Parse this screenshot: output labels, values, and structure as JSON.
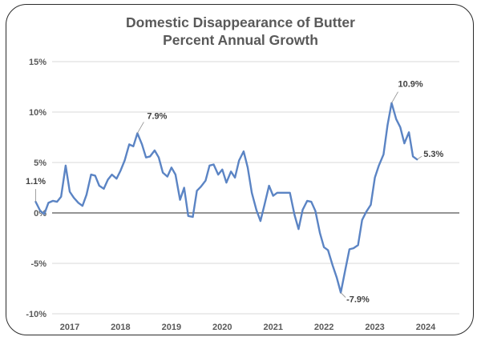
{
  "chart_data": {
    "type": "line",
    "title_line1": "Domestic Disappearance of Butter",
    "title_line2": "Percent Annual Growth",
    "xlabel": "",
    "ylabel": "",
    "ylim": [
      -10,
      15
    ],
    "yticks": [
      {
        "value": 15,
        "label": "15%"
      },
      {
        "value": 10,
        "label": "10%"
      },
      {
        "value": 5,
        "label": "5%"
      },
      {
        "value": 0,
        "label": "0%"
      },
      {
        "value": -5,
        "label": "-5%"
      },
      {
        "value": -10,
        "label": "-10%"
      }
    ],
    "xlim": [
      2016.33,
      2025.0
    ],
    "xticks": [
      {
        "value": 2017.0,
        "label": "2017"
      },
      {
        "value": 2018.0,
        "label": "2018"
      },
      {
        "value": 2019.0,
        "label": "2019"
      },
      {
        "value": 2020.0,
        "label": "2020"
      },
      {
        "value": 2021.0,
        "label": "2021"
      },
      {
        "value": 2022.0,
        "label": "2022"
      },
      {
        "value": 2023.0,
        "label": "2023"
      },
      {
        "value": 2024.0,
        "label": "2024"
      }
    ],
    "grid": true,
    "line_color": "#5b84c4",
    "series": [
      {
        "name": "",
        "points": [
          [
            2016.33,
            1.1
          ],
          [
            2016.42,
            0.2
          ],
          [
            2016.5,
            -0.1
          ],
          [
            2016.58,
            1.0
          ],
          [
            2016.67,
            1.2
          ],
          [
            2016.75,
            1.1
          ],
          [
            2016.83,
            1.6
          ],
          [
            2016.92,
            4.7
          ],
          [
            2017.0,
            2.1
          ],
          [
            2017.08,
            1.5
          ],
          [
            2017.17,
            1.0
          ],
          [
            2017.25,
            0.7
          ],
          [
            2017.33,
            1.8
          ],
          [
            2017.42,
            3.8
          ],
          [
            2017.5,
            3.7
          ],
          [
            2017.58,
            2.7
          ],
          [
            2017.67,
            2.4
          ],
          [
            2017.75,
            3.3
          ],
          [
            2017.83,
            3.8
          ],
          [
            2017.92,
            3.4
          ],
          [
            2018.0,
            4.2
          ],
          [
            2018.08,
            5.2
          ],
          [
            2018.17,
            6.8
          ],
          [
            2018.25,
            6.6
          ],
          [
            2018.33,
            7.9
          ],
          [
            2018.42,
            6.8
          ],
          [
            2018.5,
            5.5
          ],
          [
            2018.58,
            5.6
          ],
          [
            2018.67,
            6.2
          ],
          [
            2018.75,
            5.5
          ],
          [
            2018.83,
            4.0
          ],
          [
            2018.92,
            3.6
          ],
          [
            2019.0,
            4.5
          ],
          [
            2019.08,
            3.8
          ],
          [
            2019.17,
            1.3
          ],
          [
            2019.25,
            2.5
          ],
          [
            2019.33,
            -0.3
          ],
          [
            2019.42,
            -0.4
          ],
          [
            2019.5,
            2.2
          ],
          [
            2019.58,
            2.6
          ],
          [
            2019.67,
            3.2
          ],
          [
            2019.75,
            4.7
          ],
          [
            2019.83,
            4.8
          ],
          [
            2019.92,
            3.8
          ],
          [
            2020.0,
            4.3
          ],
          [
            2020.08,
            3.0
          ],
          [
            2020.17,
            4.1
          ],
          [
            2020.25,
            3.5
          ],
          [
            2020.33,
            5.2
          ],
          [
            2020.42,
            6.1
          ],
          [
            2020.5,
            4.5
          ],
          [
            2020.58,
            2.0
          ],
          [
            2020.67,
            0.3
          ],
          [
            2020.75,
            -0.8
          ],
          [
            2020.83,
            0.8
          ],
          [
            2020.92,
            2.7
          ],
          [
            2021.0,
            1.7
          ],
          [
            2021.08,
            2.0
          ],
          [
            2021.17,
            2.0
          ],
          [
            2021.25,
            2.0
          ],
          [
            2021.33,
            2.0
          ],
          [
            2021.42,
            -0.2
          ],
          [
            2021.5,
            -1.6
          ],
          [
            2021.58,
            0.3
          ],
          [
            2021.67,
            1.2
          ],
          [
            2021.75,
            1.1
          ],
          [
            2021.83,
            0.2
          ],
          [
            2021.92,
            -2.0
          ],
          [
            2022.0,
            -3.4
          ],
          [
            2022.08,
            -3.7
          ],
          [
            2022.17,
            -5.2
          ],
          [
            2022.25,
            -6.4
          ],
          [
            2022.33,
            -7.9
          ],
          [
            2022.42,
            -5.6
          ],
          [
            2022.5,
            -3.6
          ],
          [
            2022.58,
            -3.5
          ],
          [
            2022.67,
            -3.2
          ],
          [
            2022.75,
            -0.7
          ],
          [
            2022.83,
            0.1
          ],
          [
            2022.92,
            0.8
          ],
          [
            2023.0,
            3.5
          ],
          [
            2023.08,
            4.7
          ],
          [
            2023.17,
            5.8
          ],
          [
            2023.25,
            8.7
          ],
          [
            2023.33,
            10.9
          ],
          [
            2023.42,
            9.3
          ],
          [
            2023.5,
            8.5
          ],
          [
            2023.58,
            6.9
          ],
          [
            2023.67,
            8.0
          ],
          [
            2023.75,
            5.6
          ],
          [
            2023.83,
            5.3
          ]
        ]
      }
    ],
    "annotations": [
      {
        "label": "1.1%",
        "x": 2016.33,
        "y": 1.1,
        "color": "#404040"
      },
      {
        "label": "7.9%",
        "x": 2018.33,
        "y": 7.9,
        "color": "#404040"
      },
      {
        "label": "10.9%",
        "x": 2023.33,
        "y": 10.9,
        "color": "#404040"
      },
      {
        "label": "5.3%",
        "x": 2023.83,
        "y": 5.3,
        "color": "#404040"
      },
      {
        "label": "-7.9%",
        "x": 2022.33,
        "y": -7.9,
        "color": "#c00000"
      }
    ]
  }
}
